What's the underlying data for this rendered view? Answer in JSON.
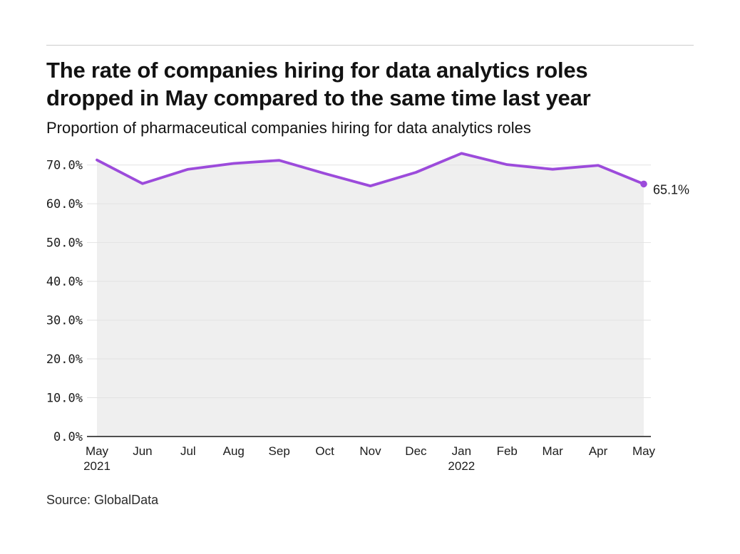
{
  "header": {
    "title_lines": [
      "The rate of companies hiring for data analytics roles",
      "dropped in May compared to the same time last year"
    ],
    "subtitle": "Proportion of pharmaceutical companies hiring for data analytics roles"
  },
  "footer": {
    "source": "Source: GlobalData"
  },
  "chart_data": {
    "type": "line",
    "title": "The rate of companies hiring for data analytics roles dropped in May compared to the same time last year",
    "subtitle": "Proportion of pharmaceutical companies hiring for data analytics roles",
    "x_categories": [
      {
        "label": "May",
        "sublabel": "2021"
      },
      {
        "label": "Jun",
        "sublabel": ""
      },
      {
        "label": "Jul",
        "sublabel": ""
      },
      {
        "label": "Aug",
        "sublabel": ""
      },
      {
        "label": "Sep",
        "sublabel": ""
      },
      {
        "label": "Oct",
        "sublabel": ""
      },
      {
        "label": "Nov",
        "sublabel": ""
      },
      {
        "label": "Dec",
        "sublabel": ""
      },
      {
        "label": "Jan",
        "sublabel": "2022"
      },
      {
        "label": "Feb",
        "sublabel": ""
      },
      {
        "label": "Mar",
        "sublabel": ""
      },
      {
        "label": "Apr",
        "sublabel": ""
      },
      {
        "label": "May",
        "sublabel": ""
      }
    ],
    "values": [
      71.3,
      65.2,
      68.9,
      70.4,
      71.2,
      67.8,
      64.6,
      68.1,
      73.0,
      70.1,
      68.9,
      69.9,
      65.1
    ],
    "unit": "%",
    "end_point_label": "65.1%",
    "y_ticks": [
      {
        "value": 0,
        "label": "0.0%"
      },
      {
        "value": 10,
        "label": "10.0%"
      },
      {
        "value": 20,
        "label": "20.0%"
      },
      {
        "value": 30,
        "label": "30.0%"
      },
      {
        "value": 40,
        "label": "40.0%"
      },
      {
        "value": 50,
        "label": "50.0%"
      },
      {
        "value": 60,
        "label": "60.0%"
      },
      {
        "value": 70,
        "label": "70.0%"
      }
    ],
    "ylim": [
      0,
      75
    ],
    "grid": "horizontal",
    "legend": "none",
    "colors": {
      "line": "#9c4bdb",
      "area_fill": "#efefef",
      "gridline": "#e2e2e2",
      "axis": "#4f4f4f",
      "text": "#1a1a1a"
    }
  }
}
